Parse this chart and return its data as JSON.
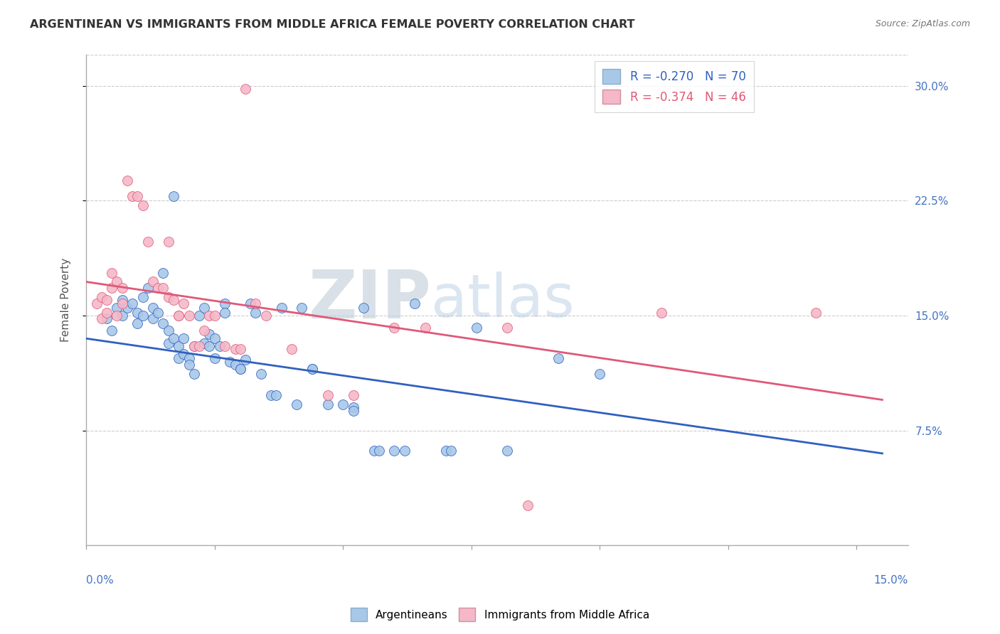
{
  "title": "ARGENTINEAN VS IMMIGRANTS FROM MIDDLE AFRICA FEMALE POVERTY CORRELATION CHART",
  "source": "Source: ZipAtlas.com",
  "ylabel": "Female Poverty",
  "ytick_values": [
    0.075,
    0.15,
    0.225,
    0.3
  ],
  "ytick_labels": [
    "7.5%",
    "15.0%",
    "22.5%",
    "30.0%"
  ],
  "xlim": [
    0.0,
    0.16
  ],
  "ylim": [
    0.0,
    0.32
  ],
  "legend_r1": "R = -0.270",
  "legend_n1": "N = 70",
  "legend_r2": "R = -0.374",
  "legend_n2": "N = 46",
  "color_blue": "#a8c8e8",
  "color_pink": "#f5b8c8",
  "line_blue": "#3060c0",
  "line_pink": "#e05878",
  "right_axis_color": "#4472c4",
  "blue_scatter": [
    [
      0.004,
      0.148
    ],
    [
      0.005,
      0.14
    ],
    [
      0.006,
      0.155
    ],
    [
      0.007,
      0.16
    ],
    [
      0.007,
      0.15
    ],
    [
      0.008,
      0.155
    ],
    [
      0.009,
      0.158
    ],
    [
      0.01,
      0.152
    ],
    [
      0.01,
      0.145
    ],
    [
      0.011,
      0.162
    ],
    [
      0.011,
      0.15
    ],
    [
      0.012,
      0.168
    ],
    [
      0.013,
      0.155
    ],
    [
      0.013,
      0.148
    ],
    [
      0.014,
      0.152
    ],
    [
      0.015,
      0.145
    ],
    [
      0.015,
      0.178
    ],
    [
      0.016,
      0.14
    ],
    [
      0.016,
      0.132
    ],
    [
      0.017,
      0.228
    ],
    [
      0.017,
      0.135
    ],
    [
      0.018,
      0.13
    ],
    [
      0.018,
      0.122
    ],
    [
      0.019,
      0.135
    ],
    [
      0.019,
      0.125
    ],
    [
      0.02,
      0.122
    ],
    [
      0.02,
      0.118
    ],
    [
      0.021,
      0.13
    ],
    [
      0.021,
      0.112
    ],
    [
      0.022,
      0.15
    ],
    [
      0.023,
      0.155
    ],
    [
      0.023,
      0.132
    ],
    [
      0.024,
      0.138
    ],
    [
      0.024,
      0.13
    ],
    [
      0.025,
      0.135
    ],
    [
      0.025,
      0.122
    ],
    [
      0.026,
      0.13
    ],
    [
      0.027,
      0.158
    ],
    [
      0.027,
      0.152
    ],
    [
      0.028,
      0.12
    ],
    [
      0.029,
      0.118
    ],
    [
      0.03,
      0.115
    ],
    [
      0.03,
      0.115
    ],
    [
      0.031,
      0.121
    ],
    [
      0.032,
      0.158
    ],
    [
      0.033,
      0.152
    ],
    [
      0.034,
      0.112
    ],
    [
      0.036,
      0.098
    ],
    [
      0.037,
      0.098
    ],
    [
      0.038,
      0.155
    ],
    [
      0.041,
      0.092
    ],
    [
      0.042,
      0.155
    ],
    [
      0.044,
      0.115
    ],
    [
      0.044,
      0.115
    ],
    [
      0.047,
      0.092
    ],
    [
      0.05,
      0.092
    ],
    [
      0.052,
      0.09
    ],
    [
      0.052,
      0.088
    ],
    [
      0.054,
      0.155
    ],
    [
      0.056,
      0.062
    ],
    [
      0.057,
      0.062
    ],
    [
      0.06,
      0.062
    ],
    [
      0.062,
      0.062
    ],
    [
      0.064,
      0.158
    ],
    [
      0.07,
      0.062
    ],
    [
      0.071,
      0.062
    ],
    [
      0.076,
      0.142
    ],
    [
      0.082,
      0.062
    ],
    [
      0.092,
      0.122
    ],
    [
      0.1,
      0.112
    ]
  ],
  "pink_scatter": [
    [
      0.002,
      0.158
    ],
    [
      0.003,
      0.162
    ],
    [
      0.003,
      0.148
    ],
    [
      0.004,
      0.152
    ],
    [
      0.004,
      0.16
    ],
    [
      0.005,
      0.168
    ],
    [
      0.005,
      0.178
    ],
    [
      0.006,
      0.15
    ],
    [
      0.006,
      0.172
    ],
    [
      0.007,
      0.168
    ],
    [
      0.007,
      0.158
    ],
    [
      0.008,
      0.238
    ],
    [
      0.009,
      0.228
    ],
    [
      0.01,
      0.228
    ],
    [
      0.011,
      0.222
    ],
    [
      0.012,
      0.198
    ],
    [
      0.013,
      0.172
    ],
    [
      0.014,
      0.168
    ],
    [
      0.015,
      0.168
    ],
    [
      0.016,
      0.162
    ],
    [
      0.016,
      0.198
    ],
    [
      0.017,
      0.16
    ],
    [
      0.018,
      0.15
    ],
    [
      0.018,
      0.15
    ],
    [
      0.019,
      0.158
    ],
    [
      0.02,
      0.15
    ],
    [
      0.021,
      0.13
    ],
    [
      0.022,
      0.13
    ],
    [
      0.023,
      0.14
    ],
    [
      0.024,
      0.15
    ],
    [
      0.025,
      0.15
    ],
    [
      0.027,
      0.13
    ],
    [
      0.029,
      0.128
    ],
    [
      0.03,
      0.128
    ],
    [
      0.031,
      0.298
    ],
    [
      0.033,
      0.158
    ],
    [
      0.035,
      0.15
    ],
    [
      0.04,
      0.128
    ],
    [
      0.047,
      0.098
    ],
    [
      0.052,
      0.098
    ],
    [
      0.06,
      0.142
    ],
    [
      0.066,
      0.142
    ],
    [
      0.082,
      0.142
    ],
    [
      0.086,
      0.026
    ],
    [
      0.112,
      0.152
    ],
    [
      0.142,
      0.152
    ]
  ],
  "blue_trendline": [
    [
      0.0,
      0.135
    ],
    [
      0.155,
      0.06
    ]
  ],
  "pink_trendline": [
    [
      0.0,
      0.172
    ],
    [
      0.155,
      0.095
    ]
  ],
  "grid_color": "#cccccc",
  "grid_linestyle": "--",
  "watermark_zip": "ZIP",
  "watermark_atlas": "atlas",
  "watermark_zip_color": "#c8d8e8",
  "watermark_atlas_color": "#b8cce0"
}
